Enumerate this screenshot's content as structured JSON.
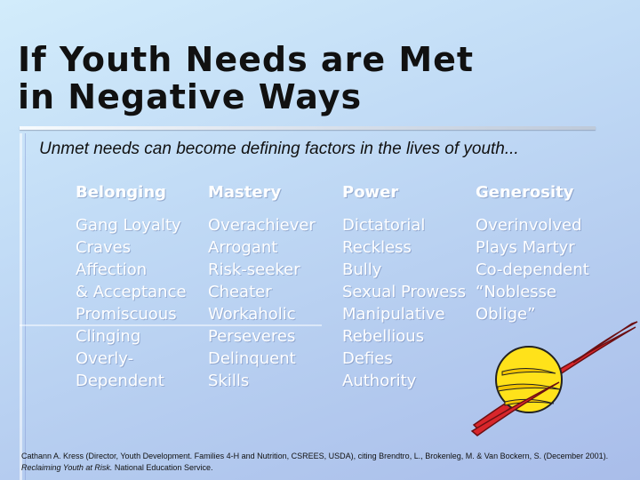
{
  "slide": {
    "title_line1": "If Youth Needs are Met",
    "title_line2": "in Negative Ways",
    "subtitle": "Unmet needs can become defining factors in the lives of youth...",
    "columns": [
      {
        "heading": "Belonging",
        "items": [
          "Gang Loyalty",
          "Craves",
          "Affection",
          "& Acceptance",
          "Promiscuous",
          "Clinging",
          "Overly-",
          "Dependent"
        ]
      },
      {
        "heading": "Mastery",
        "items": [
          "Overachiever",
          "Arrogant",
          "Risk-seeker",
          "Cheater",
          "Workaholic",
          "Perseveres",
          "Delinquent",
          "Skills"
        ]
      },
      {
        "heading": "Power",
        "items": [
          "Dictatorial",
          "Reckless",
          "Bully",
          "Sexual Prowess",
          "Manipulative",
          "Rebellious",
          "Defies",
          "Authority"
        ]
      },
      {
        "heading": "Generosity",
        "items": [
          "Overinvolved",
          "Plays Martyr",
          "Co-dependent",
          "“Noblesse",
          "Oblige”"
        ]
      }
    ],
    "citation_part1": "Cathann A. Kress (Director, Youth Development. Families 4-H and Nutrition, CSREES, USDA), citing Brendtro, L., Brokenleg, M. & Van Bockern, S. (December 2001). ",
    "citation_title": "Reclaiming Youth at Risk.",
    "citation_part2": "  National Education Service.",
    "planet_icon": "saturn-clipart-icon",
    "colors": {
      "text_dark": "#111111",
      "column_text": "#ffffff",
      "planet_yellow": "#ffe21a",
      "ring_red": "#d8262b"
    }
  }
}
